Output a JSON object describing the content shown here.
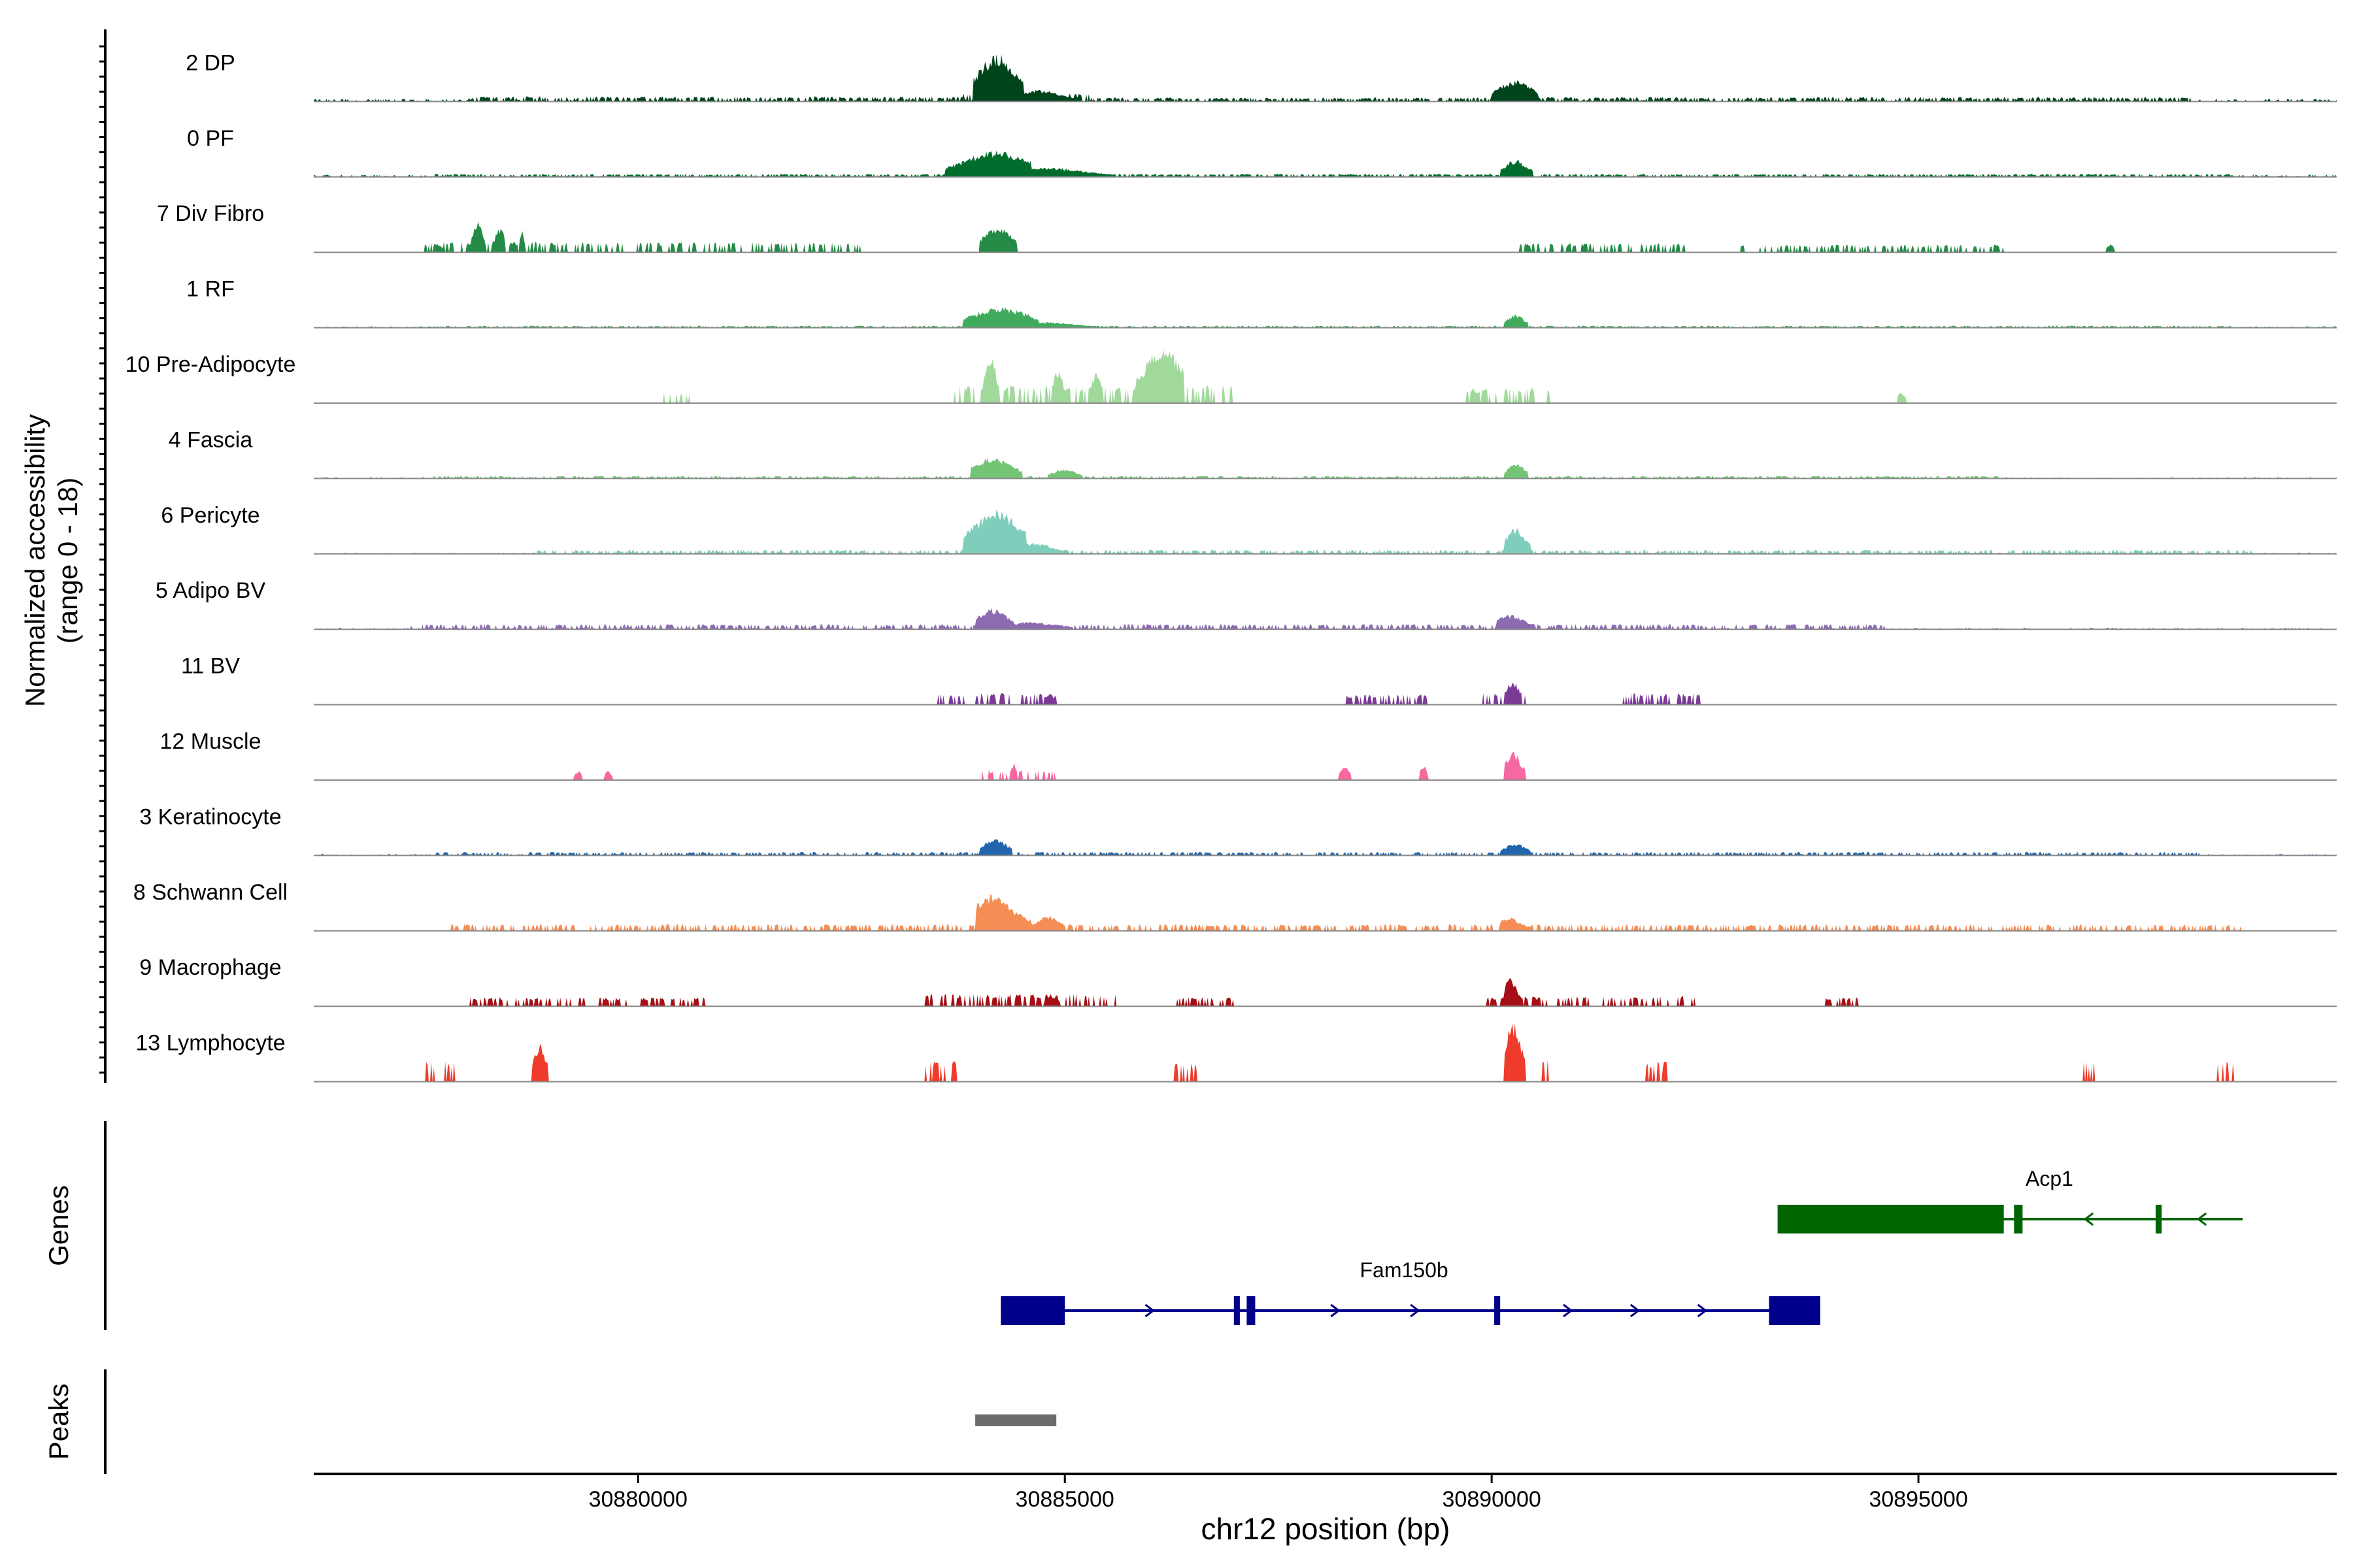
{
  "chart_data": {
    "type": "area",
    "chromosome": "chr12",
    "xlabel": "chr12 position (bp)",
    "xlim": [
      30876200,
      30899900
    ],
    "xticks": [
      30880000,
      30885000,
      30890000,
      30895000
    ],
    "xtick_labels": [
      "30880000",
      "30885000",
      "30890000",
      "30895000"
    ],
    "coverage_ylabel_line1": "Normalized accessibility",
    "coverage_ylabel_line2": "(range 0 - 18)",
    "coverage_range": [
      0,
      18
    ],
    "tracks": [
      {
        "name": "2 DP",
        "color": "#00441b",
        "base": 0.35,
        "peaks": [
          {
            "start": 30883930,
            "end": 30884520,
            "center": 30884200,
            "height": 12.5
          },
          {
            "start": 30884500,
            "end": 30885150,
            "center": 30884700,
            "height": 3.0
          },
          {
            "start": 30890000,
            "end": 30890550,
            "center": 30890280,
            "height": 5.5
          }
        ],
        "regions": [
          [
            30878000,
            30883800,
            1.0
          ],
          [
            30883800,
            30885300,
            1.6
          ],
          [
            30885300,
            30890000,
            0.8
          ],
          [
            30890550,
            30898200,
            0.9
          ]
        ]
      },
      {
        "name": "0 PF",
        "color": "#006d2c",
        "base": 0.3,
        "peaks": [
          {
            "start": 30883600,
            "end": 30884600,
            "center": 30884200,
            "height": 7.0
          },
          {
            "start": 30884500,
            "end": 30885600,
            "center": 30884800,
            "height": 2.5
          },
          {
            "start": 30890100,
            "end": 30890480,
            "center": 30890280,
            "height": 4.5
          }
        ],
        "regions": [
          [
            30877600,
            30898700,
            0.6
          ]
        ]
      },
      {
        "name": "7 Div Fibro",
        "color": "#238b45",
        "base": 0,
        "peaks": [
          {
            "start": 30878050,
            "end": 30878200,
            "center": 30878120,
            "height": 8.5
          },
          {
            "start": 30878300,
            "end": 30878450,
            "center": 30878380,
            "height": 6.5
          },
          {
            "start": 30878600,
            "end": 30878680,
            "center": 30878640,
            "height": 5.5
          },
          {
            "start": 30884000,
            "end": 30884440,
            "center": 30884220,
            "height": 7.0
          },
          {
            "start": 30877600,
            "end": 30877720,
            "center": 30877660,
            "height": 2.2
          },
          {
            "start": 30897200,
            "end": 30897300,
            "center": 30897250,
            "height": 2.2
          }
        ],
        "regions": [
          [
            30877500,
            30882600,
            2.0
          ],
          [
            30890250,
            30892300,
            1.8
          ],
          [
            30892900,
            30896000,
            1.5
          ]
        ]
      },
      {
        "name": "1 RF",
        "color": "#41ab5d",
        "base": 0.2,
        "peaks": [
          {
            "start": 30883800,
            "end": 30884700,
            "center": 30884250,
            "height": 5.5
          },
          {
            "start": 30884600,
            "end": 30885400,
            "center": 30884800,
            "height": 1.5
          },
          {
            "start": 30890150,
            "end": 30890420,
            "center": 30890280,
            "height": 3.5
          }
        ],
        "regions": [
          [
            30877600,
            30898700,
            0.4
          ]
        ]
      },
      {
        "name": "10 Pre-Adipocyte",
        "color": "#a1d99b",
        "base": 0,
        "peaks": [
          {
            "start": 30884050,
            "end": 30884220,
            "center": 30884130,
            "height": 13.0
          },
          {
            "start": 30884850,
            "end": 30885000,
            "center": 30884920,
            "height": 9.0
          },
          {
            "start": 30885300,
            "end": 30885450,
            "center": 30885370,
            "height": 8.0
          },
          {
            "start": 30885830,
            "end": 30886400,
            "center": 30886150,
            "height": 15.5
          },
          {
            "start": 30894750,
            "end": 30894860,
            "center": 30894800,
            "height": 3.0
          }
        ],
        "regions": [
          [
            30880300,
            30880600,
            2.0
          ],
          [
            30883600,
            30887000,
            3.5
          ],
          [
            30889700,
            30890700,
            3.0
          ]
        ]
      },
      {
        "name": "4 Fascia",
        "color": "#74c476",
        "base": 0.2,
        "peaks": [
          {
            "start": 30883900,
            "end": 30884500,
            "center": 30884150,
            "height": 5.5
          },
          {
            "start": 30884800,
            "end": 30885200,
            "center": 30885000,
            "height": 2.5
          },
          {
            "start": 30890150,
            "end": 30890420,
            "center": 30890280,
            "height": 4.0
          }
        ],
        "regions": [
          [
            30877600,
            30896000,
            0.5
          ]
        ]
      },
      {
        "name": "6 Pericyte",
        "color": "#7fcdbb",
        "base": 0.2,
        "peaks": [
          {
            "start": 30883800,
            "end": 30884550,
            "center": 30884200,
            "height": 11.5
          },
          {
            "start": 30884500,
            "end": 30885000,
            "center": 30884650,
            "height": 3.0
          },
          {
            "start": 30890150,
            "end": 30890450,
            "center": 30890280,
            "height": 7.0
          }
        ],
        "regions": [
          [
            30878800,
            30898900,
            0.8
          ]
        ]
      },
      {
        "name": "5 Adipo BV",
        "color": "#8c6bb1",
        "base": 0.2,
        "peaks": [
          {
            "start": 30883950,
            "end": 30884400,
            "center": 30884150,
            "height": 5.5
          },
          {
            "start": 30884400,
            "end": 30885100,
            "center": 30884600,
            "height": 2.0
          },
          {
            "start": 30890050,
            "end": 30890500,
            "center": 30890220,
            "height": 3.8
          }
        ],
        "regions": [
          [
            30877300,
            30894600,
            1.0
          ]
        ]
      },
      {
        "name": "11 BV",
        "color": "#7a3a96",
        "base": 0,
        "peaks": [
          {
            "start": 30884750,
            "end": 30884900,
            "center": 30884820,
            "height": 3.0
          },
          {
            "start": 30890150,
            "end": 30890350,
            "center": 30890250,
            "height": 6.5
          }
        ],
        "regions": [
          [
            30883500,
            30884900,
            2.3
          ],
          [
            30888300,
            30889300,
            2.0
          ],
          [
            30889900,
            30890400,
            2.5
          ],
          [
            30891500,
            30892500,
            2.3
          ]
        ]
      },
      {
        "name": "12 Muscle",
        "color": "#f768a1",
        "base": 0,
        "peaks": [
          {
            "start": 30879250,
            "end": 30879350,
            "center": 30879300,
            "height": 2.5
          },
          {
            "start": 30879600,
            "end": 30879700,
            "center": 30879650,
            "height": 2.5
          },
          {
            "start": 30884350,
            "end": 30884450,
            "center": 30884400,
            "height": 4.5
          },
          {
            "start": 30888200,
            "end": 30888350,
            "center": 30888280,
            "height": 3.5
          },
          {
            "start": 30889150,
            "end": 30889250,
            "center": 30889200,
            "height": 4.0
          },
          {
            "start": 30890150,
            "end": 30890400,
            "center": 30890250,
            "height": 7.5
          }
        ],
        "regions": [
          [
            30884000,
            30884900,
            2.0
          ]
        ]
      },
      {
        "name": "3 Keratinocyte",
        "color": "#2166ac",
        "base": 0.2,
        "peaks": [
          {
            "start": 30884000,
            "end": 30884380,
            "center": 30884180,
            "height": 4.5
          },
          {
            "start": 30890100,
            "end": 30890450,
            "center": 30890280,
            "height": 3.2
          }
        ],
        "regions": [
          [
            30877600,
            30898300,
            0.7
          ]
        ]
      },
      {
        "name": "8 Schwann Cell",
        "color": "#f58d54",
        "base": 0,
        "peaks": [
          {
            "start": 30883950,
            "end": 30884600,
            "center": 30884150,
            "height": 9.5
          },
          {
            "start": 30884600,
            "end": 30885000,
            "center": 30884800,
            "height": 4.0
          },
          {
            "start": 30890100,
            "end": 30890450,
            "center": 30890200,
            "height": 3.5
          }
        ],
        "regions": [
          [
            30877800,
            30898800,
            1.3
          ]
        ]
      },
      {
        "name": "9 Macrophage",
        "color": "#a50f15",
        "base": 0,
        "peaks": [
          {
            "start": 30890150,
            "end": 30890350,
            "center": 30890220,
            "height": 7.5
          },
          {
            "start": 30884750,
            "end": 30884950,
            "center": 30884850,
            "height": 3.0
          }
        ],
        "regions": [
          [
            30878000,
            30880800,
            1.8
          ],
          [
            30883350,
            30885600,
            2.4
          ],
          [
            30886300,
            30887000,
            1.8
          ],
          [
            30889900,
            30892400,
            2.0
          ],
          [
            30893900,
            30894300,
            1.8
          ]
        ]
      },
      {
        "name": "13 Lymphocyte",
        "color": "#ef3b2c",
        "base": 0,
        "peaks": [
          {
            "start": 30878750,
            "end": 30878950,
            "center": 30878850,
            "height": 10.0
          },
          {
            "start": 30890150,
            "end": 30890400,
            "center": 30890250,
            "height": 15.5
          }
        ],
        "regions": [
          [
            30877500,
            30877850,
            4.0
          ],
          [
            30883350,
            30883750,
            4.0
          ],
          [
            30886200,
            30886550,
            4.0
          ],
          [
            30890550,
            30890700,
            4.5
          ],
          [
            30891800,
            30892100,
            4.0
          ],
          [
            30896800,
            30897100,
            4.0
          ],
          [
            30898500,
            30898700,
            4.0
          ]
        ]
      }
    ],
    "genes_ylabel": "Genes",
    "genes": [
      {
        "name": "Acp1",
        "strand": "-",
        "color": "#006400",
        "start": 30893350,
        "end": 30898800,
        "exons": [
          [
            30893350,
            30896000
          ],
          [
            30896120,
            30896220
          ],
          [
            30897780,
            30897850
          ]
        ]
      },
      {
        "name": "Fam150b",
        "strand": "+",
        "color": "#00008b",
        "start": 30884250,
        "end": 30893850,
        "exons": [
          [
            30884250,
            30885000
          ],
          [
            30886980,
            30887050
          ],
          [
            30887130,
            30887230
          ],
          [
            30890030,
            30890100
          ],
          [
            30893250,
            30893850
          ]
        ]
      }
    ],
    "peaks_ylabel": "Peaks",
    "peak_regions": [
      [
        30883950,
        30884900
      ]
    ],
    "peak_color": "#6b6b6b",
    "legend": "none",
    "grid": false
  }
}
